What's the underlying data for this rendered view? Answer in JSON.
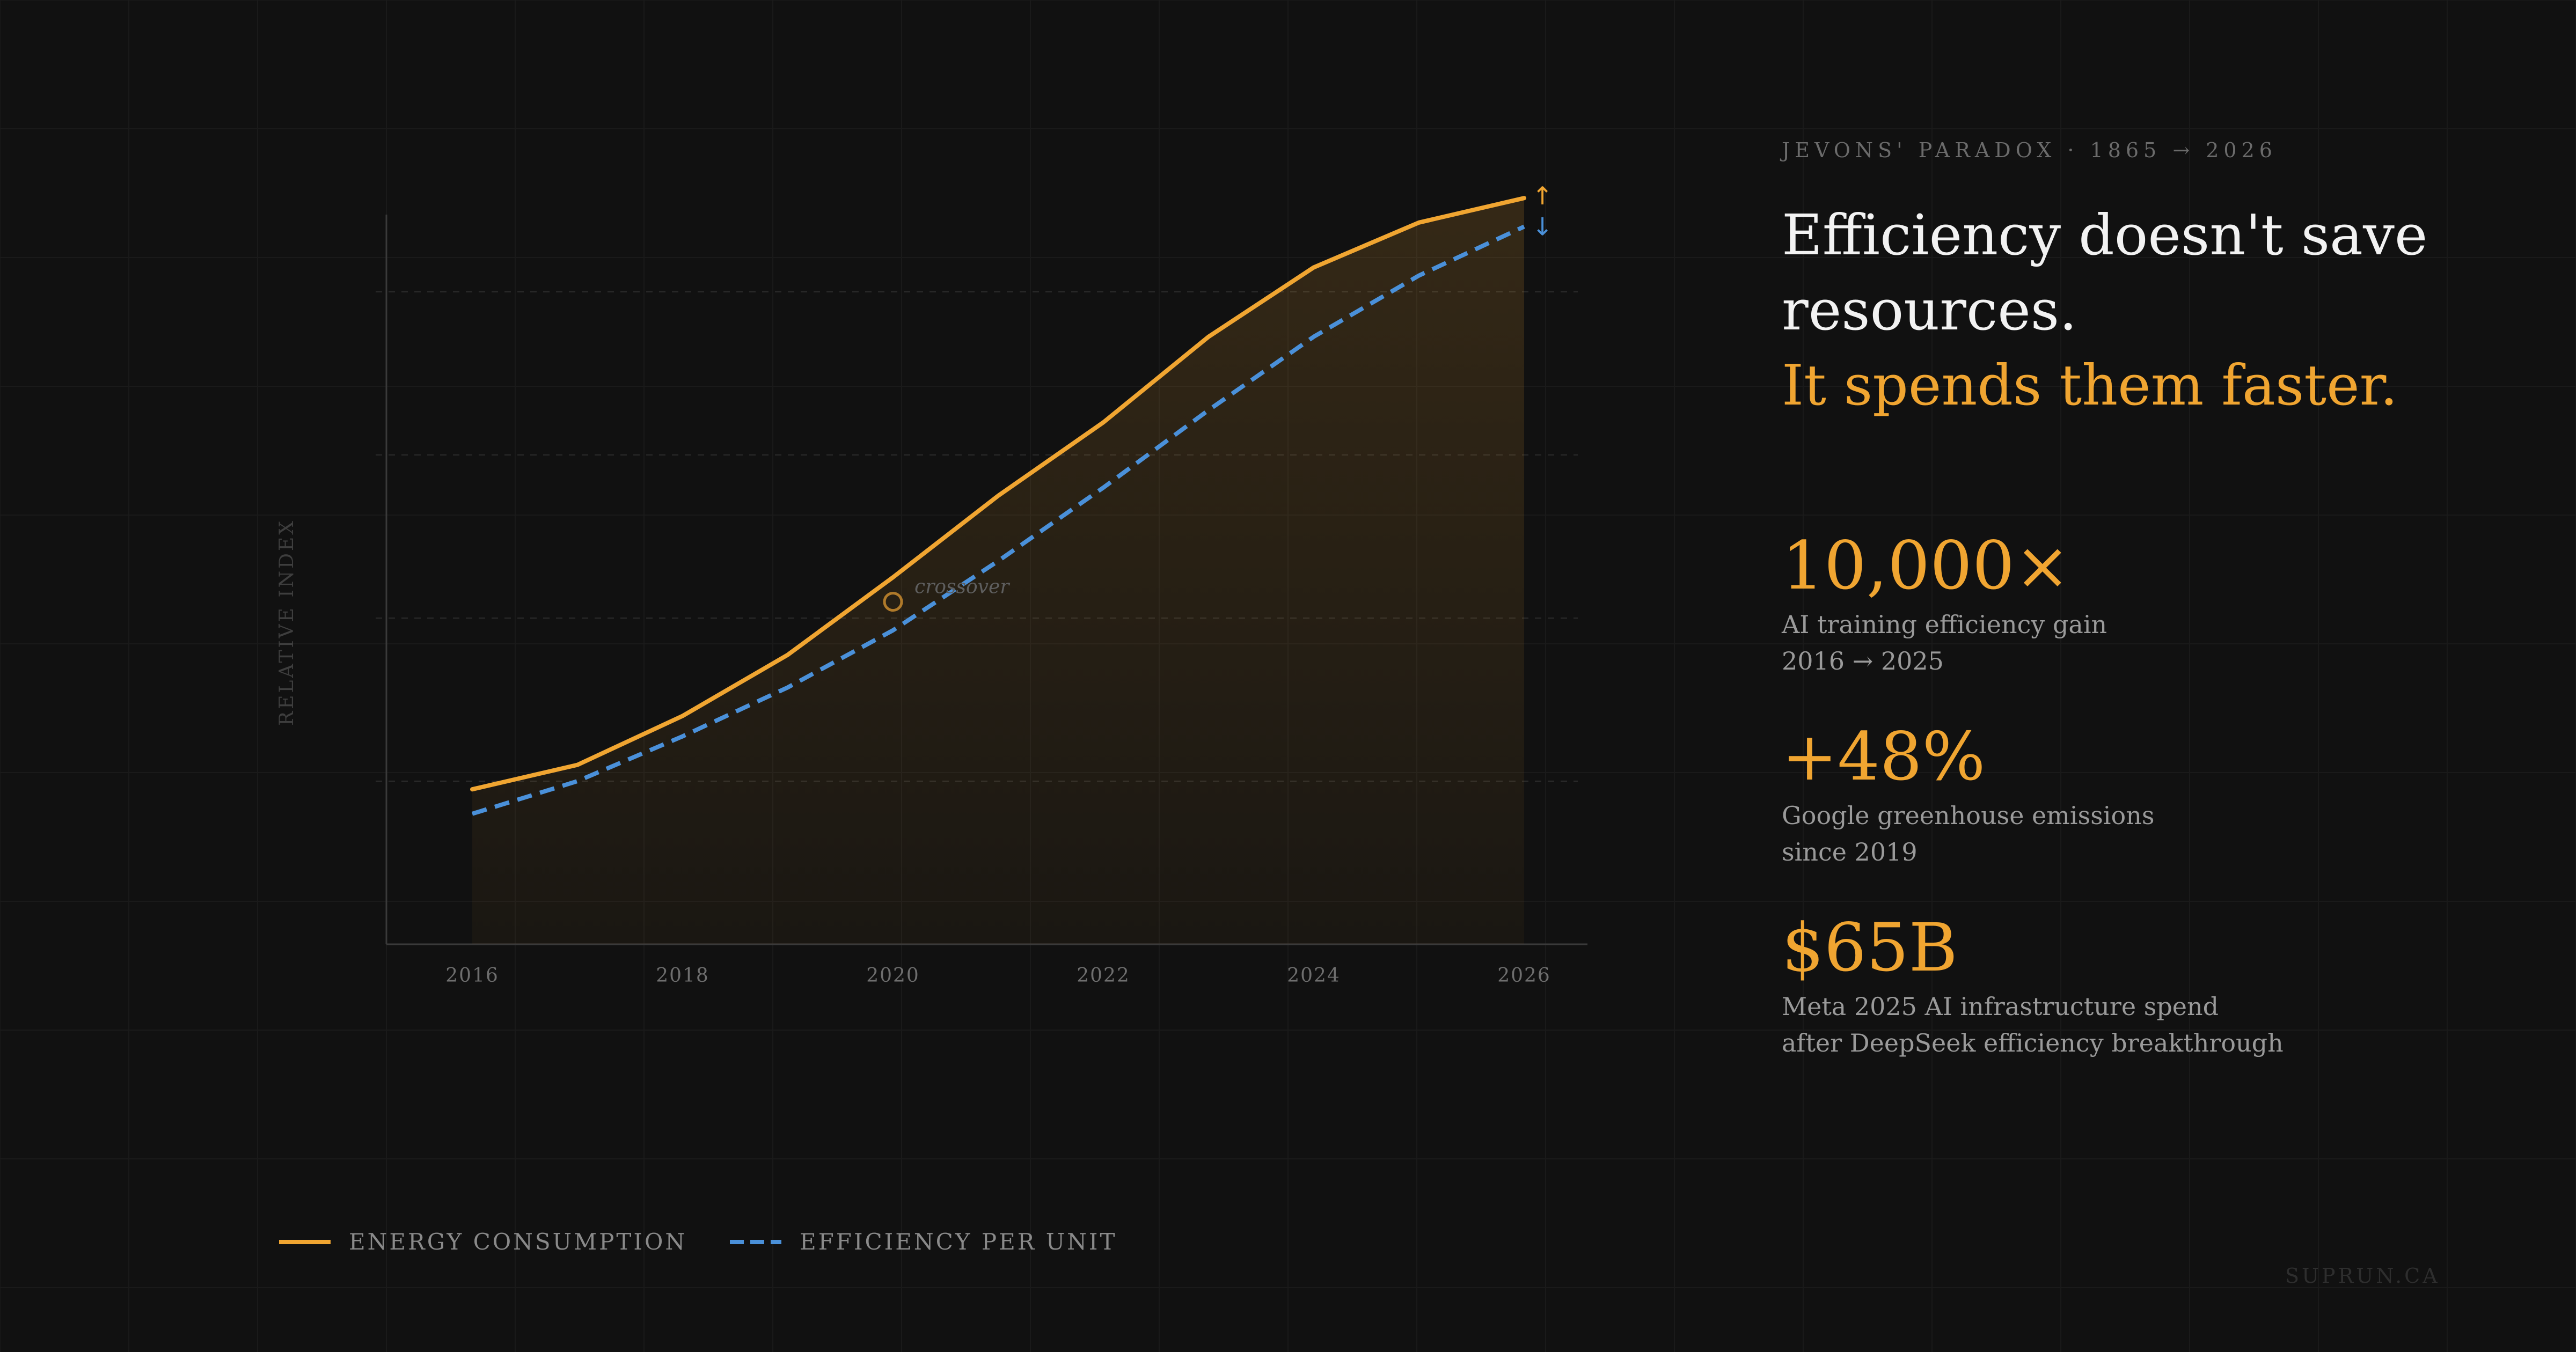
{
  "eyebrow": "JEVONS' PARADOX · 1865 → 2026",
  "headline": {
    "line1": "Efficiency doesn't save",
    "line2": "resources.",
    "accent": "It spends them faster."
  },
  "stats": [
    {
      "value": "10,000×",
      "desc1": "AI training efficiency gain",
      "desc2": "2016 → 2025"
    },
    {
      "value": "+48%",
      "desc1": "Google greenhouse emissions",
      "desc2": "since 2019"
    },
    {
      "value": "$65B",
      "desc1": "Meta 2025 AI infrastructure spend",
      "desc2": "after DeepSeek efficiency breakthrough"
    }
  ],
  "legend": {
    "energy": "ENERGY CONSUMPTION",
    "efficiency": "EFFICIENCY PER UNIT"
  },
  "watermark": "SUPRUN.CA",
  "colors": {
    "background": "#111111",
    "energy": "#f0a531",
    "efficiency": "#4a90d9",
    "text": "#f2f2f2",
    "muted": "#9a9a9a"
  },
  "chart_data": {
    "type": "line",
    "title": "",
    "xlabel": "",
    "ylabel": "RELATIVE INDEX",
    "x": [
      2016,
      2017,
      2018,
      2019,
      2020,
      2021,
      2022,
      2023,
      2024,
      2025,
      2026
    ],
    "xticks": [
      "2016",
      "2018",
      "2020",
      "2022",
      "2024",
      "2026"
    ],
    "xlim": [
      2016,
      2026
    ],
    "ylim": [
      0,
      100
    ],
    "grid": true,
    "series": [
      {
        "key": "energy",
        "values": [
          19,
          22,
          28,
          35.5,
          45,
          55,
          64,
          74.5,
          83,
          88.5,
          91.5
        ],
        "style": "solid",
        "area": true,
        "end_marker": "↑"
      },
      {
        "key": "efficiency",
        "values": [
          16,
          20,
          25.5,
          31.5,
          38.5,
          47,
          56,
          65.5,
          74.5,
          82,
          88
        ],
        "style": "dashed",
        "end_marker": "↓"
      }
    ],
    "annotations": [
      {
        "x": 2020,
        "y": 42,
        "text": "crossover"
      }
    ]
  }
}
